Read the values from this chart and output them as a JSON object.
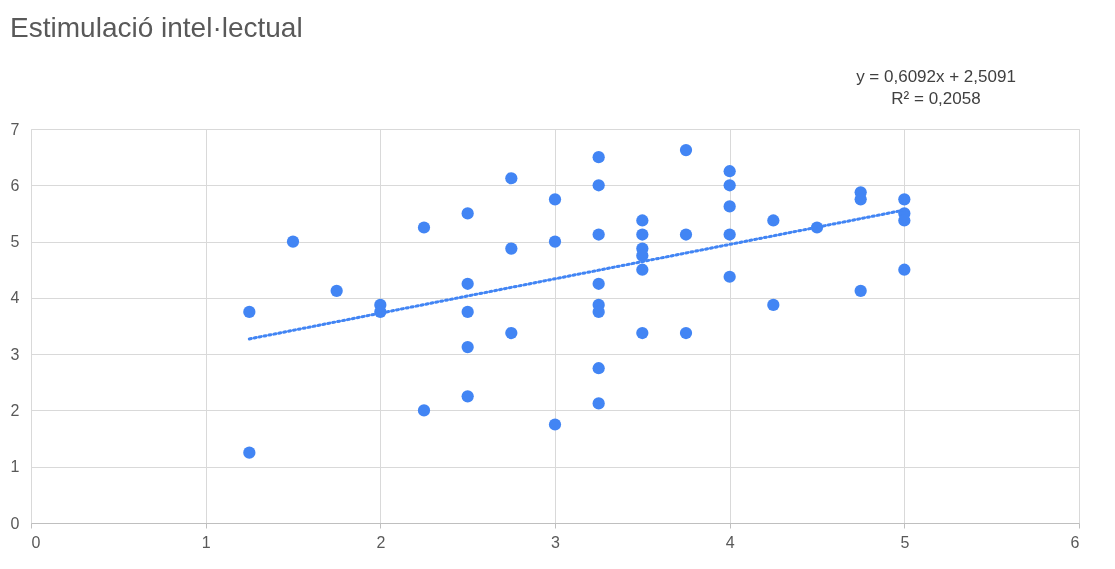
{
  "chart_data": {
    "type": "scatter",
    "title": "Estimulació intel·lectual",
    "annotations": [
      "y = 0,6092x + 2,5091",
      "R² = 0,2058"
    ],
    "xlim": [
      0,
      6
    ],
    "xticks": [
      0,
      1,
      2,
      3,
      4,
      5,
      6
    ],
    "ylim": [
      0,
      7
    ],
    "yticks": [
      0,
      1,
      2,
      3,
      4,
      5,
      6,
      7
    ],
    "grid": true,
    "series": [
      {
        "marker": "circle",
        "color": "#4285f4",
        "x": [
          1.25,
          1.25,
          1.5,
          1.75,
          2,
          2,
          2.25,
          2.25,
          2.5,
          2.5,
          2.5,
          2.5,
          2.5,
          2.75,
          2.75,
          2.75,
          3,
          3,
          3,
          3.25,
          3.25,
          3.25,
          3.25,
          3.25,
          3.25,
          3.25,
          3.25,
          3.5,
          3.5,
          3.5,
          3.5,
          3.5,
          3.5,
          3.75,
          3.75,
          3.75,
          4,
          4,
          4,
          4,
          4,
          4.25,
          4.25,
          4.5,
          4.75,
          4.75,
          4.75,
          5,
          5,
          5,
          5
        ],
        "values": [
          3.75,
          1.25,
          5.0,
          4.125,
          3.875,
          3.75,
          5.25,
          2.0,
          5.5,
          4.25,
          3.75,
          3.125,
          2.25,
          6.125,
          4.875,
          3.375,
          5.75,
          5.0,
          1.75,
          6.5,
          6.0,
          5.125,
          4.25,
          3.875,
          3.75,
          2.75,
          2.125,
          5.375,
          5.125,
          4.875,
          4.75,
          4.5,
          3.375,
          6.625,
          5.125,
          3.375,
          6.25,
          6.0,
          5.625,
          5.125,
          4.375,
          5.375,
          3.875,
          5.25,
          5.875,
          5.75,
          4.125,
          5.75,
          5.5,
          5.375,
          4.5
        ]
      },
      {
        "type": "line",
        "line_style": "dotted",
        "color": "#4285f4",
        "x": [
          1.25,
          5
        ],
        "values": [
          3.27,
          5.56
        ]
      }
    ]
  }
}
